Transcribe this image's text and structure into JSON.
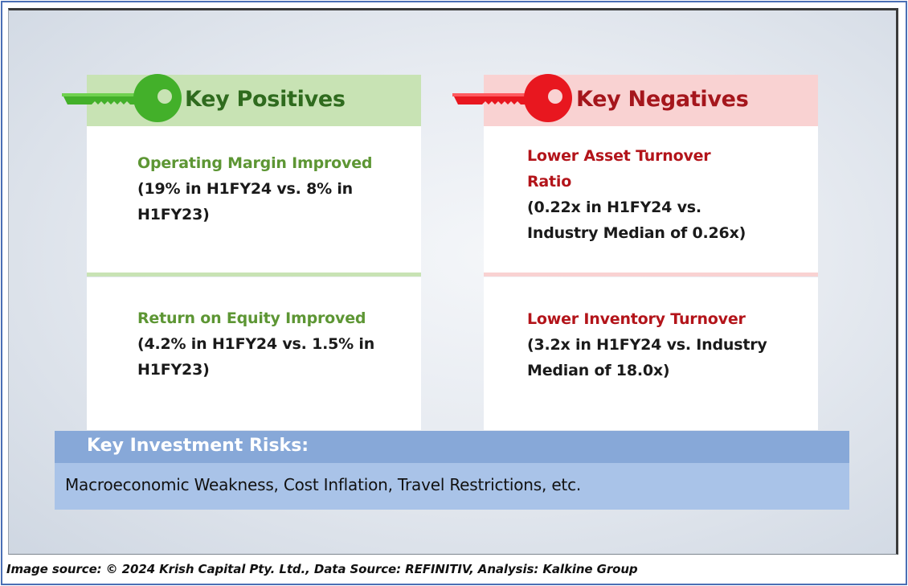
{
  "positives": {
    "header": "Key Positives",
    "items": [
      {
        "title": "Operating Margin Improved",
        "detail_line1": "(19% in H1FY24 vs. 8% in",
        "detail_line2": "H1FY23)"
      },
      {
        "title": "Return on Equity Improved",
        "detail_line1": "(4.2% in H1FY24 vs. 1.5% in",
        "detail_line2": "H1FY23)"
      }
    ]
  },
  "negatives": {
    "header": "Key Negatives",
    "items": [
      {
        "title_line1": "Lower Asset Turnover",
        "title_line2": "Ratio",
        "detail_line1": "(0.22x in H1FY24 vs.",
        "detail_line2": "Industry Median of 0.26x)"
      },
      {
        "title": "Lower Inventory Turnover",
        "detail_line1": "(3.2x in H1FY24 vs. Industry",
        "detail_line2": "Median of 18.0x)"
      }
    ]
  },
  "risks": {
    "header": "Key Investment Risks:",
    "text": "Macroeconomic Weakness, Cost Inflation, Travel Restrictions, etc."
  },
  "footer": {
    "source": "Image source: © 2024 Krish Capital Pty. Ltd., Data Source: REFINITIV, Analysis: Kalkine Group"
  },
  "colors": {
    "positive_accent": "#43b02a",
    "positive_header_bg": "#c8e3b4",
    "negative_accent": "#e8171f",
    "negative_header_bg": "#f9d2d2",
    "risk_header_bg": "#87a8d8",
    "risk_body_bg": "#a9c3e8"
  },
  "icons": {
    "positive": "green-key-icon",
    "negative": "red-key-icon"
  }
}
